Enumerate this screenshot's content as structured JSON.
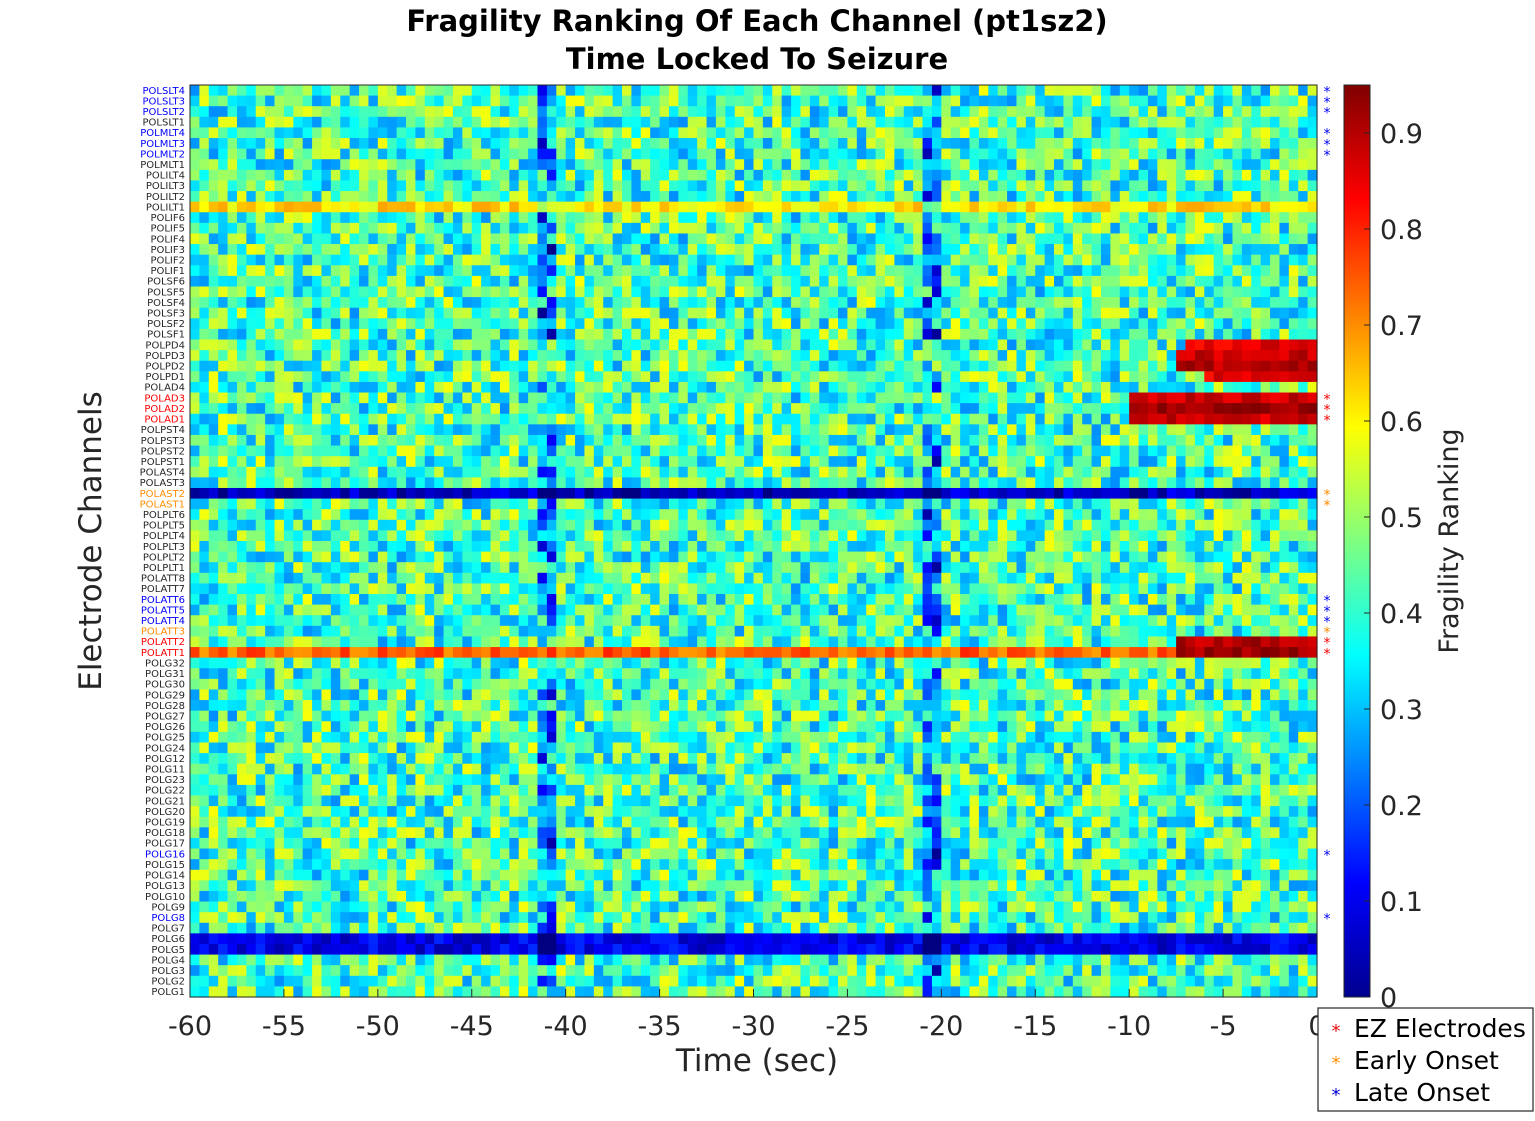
{
  "chart_data": {
    "type": "heatmap",
    "title": "Fragility Ranking Of Each Channel (pt1sz2)",
    "subtitle": "Time Locked To Seizure",
    "xlabel": "Time (sec)",
    "ylabel": "Electrode Channels",
    "colorbar_label": "Fragility Ranking",
    "xlim": [
      -60,
      0
    ],
    "x_ticks": [
      "-60",
      "-55",
      "-50",
      "-45",
      "-40",
      "-35",
      "-30",
      "-25",
      "-20",
      "-15",
      "-10",
      "-5",
      "0"
    ],
    "x_tick_values": [
      -60,
      -55,
      -50,
      -45,
      -40,
      -35,
      -30,
      -25,
      -20,
      -15,
      -10,
      -5,
      0
    ],
    "clim": [
      0,
      0.95
    ],
    "colorbar_ticks": [
      "0",
      "0.1",
      "0.2",
      "0.3",
      "0.4",
      "0.5",
      "0.6",
      "0.7",
      "0.8",
      "0.9"
    ],
    "colorbar_tick_values": [
      0,
      0.1,
      0.2,
      0.3,
      0.4,
      0.5,
      0.6,
      0.7,
      0.8,
      0.9
    ],
    "colormap": "jet",
    "time_bins": 120,
    "channels": [
      {
        "name": "POLSLT4",
        "group": "late"
      },
      {
        "name": "POLSLT3",
        "group": "late"
      },
      {
        "name": "POLSLT2",
        "group": "late"
      },
      {
        "name": "POLSLT1",
        "group": "none"
      },
      {
        "name": "POLMLT4",
        "group": "late"
      },
      {
        "name": "POLMLT3",
        "group": "late"
      },
      {
        "name": "POLMLT2",
        "group": "late"
      },
      {
        "name": "POLMLT1",
        "group": "none"
      },
      {
        "name": "POLILT4",
        "group": "none"
      },
      {
        "name": "POLILT3",
        "group": "none"
      },
      {
        "name": "POLILT2",
        "group": "none"
      },
      {
        "name": "POLILT1",
        "group": "none"
      },
      {
        "name": "POLIF6",
        "group": "none"
      },
      {
        "name": "POLIF5",
        "group": "none"
      },
      {
        "name": "POLIF4",
        "group": "none"
      },
      {
        "name": "POLIF3",
        "group": "none"
      },
      {
        "name": "POLIF2",
        "group": "none"
      },
      {
        "name": "POLIF1",
        "group": "none"
      },
      {
        "name": "POLSF6",
        "group": "none"
      },
      {
        "name": "POLSF5",
        "group": "none"
      },
      {
        "name": "POLSF4",
        "group": "none"
      },
      {
        "name": "POLSF3",
        "group": "none"
      },
      {
        "name": "POLSF2",
        "group": "none"
      },
      {
        "name": "POLSF1",
        "group": "none"
      },
      {
        "name": "POLPD4",
        "group": "none"
      },
      {
        "name": "POLPD3",
        "group": "none"
      },
      {
        "name": "POLPD2",
        "group": "none"
      },
      {
        "name": "POLPD1",
        "group": "none"
      },
      {
        "name": "POLAD4",
        "group": "none"
      },
      {
        "name": "POLAD3",
        "group": "ez"
      },
      {
        "name": "POLAD2",
        "group": "ez"
      },
      {
        "name": "POLAD1",
        "group": "ez"
      },
      {
        "name": "POLPST4",
        "group": "none"
      },
      {
        "name": "POLPST3",
        "group": "none"
      },
      {
        "name": "POLPST2",
        "group": "none"
      },
      {
        "name": "POLPST1",
        "group": "none"
      },
      {
        "name": "POLAST4",
        "group": "none"
      },
      {
        "name": "POLAST3",
        "group": "none"
      },
      {
        "name": "POLAST2",
        "group": "early"
      },
      {
        "name": "POLAST1",
        "group": "early"
      },
      {
        "name": "POLPLT6",
        "group": "none"
      },
      {
        "name": "POLPLT5",
        "group": "none"
      },
      {
        "name": "POLPLT4",
        "group": "none"
      },
      {
        "name": "POLPLT3",
        "group": "none"
      },
      {
        "name": "POLPLT2",
        "group": "none"
      },
      {
        "name": "POLPLT1",
        "group": "none"
      },
      {
        "name": "POLATT8",
        "group": "none"
      },
      {
        "name": "POLATT7",
        "group": "none"
      },
      {
        "name": "POLATT6",
        "group": "late"
      },
      {
        "name": "POLATT5",
        "group": "late"
      },
      {
        "name": "POLATT4",
        "group": "late"
      },
      {
        "name": "POLATT3",
        "group": "early"
      },
      {
        "name": "POLATT2",
        "group": "ez"
      },
      {
        "name": "POLATT1",
        "group": "ez"
      },
      {
        "name": "POLG32",
        "group": "none"
      },
      {
        "name": "POLG31",
        "group": "none"
      },
      {
        "name": "POLG30",
        "group": "none"
      },
      {
        "name": "POLG29",
        "group": "none"
      },
      {
        "name": "POLG28",
        "group": "none"
      },
      {
        "name": "POLG27",
        "group": "none"
      },
      {
        "name": "POLG26",
        "group": "none"
      },
      {
        "name": "POLG25",
        "group": "none"
      },
      {
        "name": "POLG24",
        "group": "none"
      },
      {
        "name": "POLG12",
        "group": "none"
      },
      {
        "name": "POLG11",
        "group": "none"
      },
      {
        "name": "POLG23",
        "group": "none"
      },
      {
        "name": "POLG22",
        "group": "none"
      },
      {
        "name": "POLG21",
        "group": "none"
      },
      {
        "name": "POLG20",
        "group": "none"
      },
      {
        "name": "POLG19",
        "group": "none"
      },
      {
        "name": "POLG18",
        "group": "none"
      },
      {
        "name": "POLG17",
        "group": "none"
      },
      {
        "name": "POLG16",
        "group": "late"
      },
      {
        "name": "POLG15",
        "group": "none"
      },
      {
        "name": "POLG14",
        "group": "none"
      },
      {
        "name": "POLG13",
        "group": "none"
      },
      {
        "name": "POLG10",
        "group": "none"
      },
      {
        "name": "POLG9",
        "group": "none"
      },
      {
        "name": "POLG8",
        "group": "late"
      },
      {
        "name": "POLG7",
        "group": "none"
      },
      {
        "name": "POLG6",
        "group": "none"
      },
      {
        "name": "POLG5",
        "group": "none"
      },
      {
        "name": "POLG4",
        "group": "none"
      },
      {
        "name": "POLG3",
        "group": "none"
      },
      {
        "name": "POLG2",
        "group": "none"
      },
      {
        "name": "POLG1",
        "group": "none"
      }
    ],
    "row_profiles": {
      "POLILT1": {
        "base": 0.62
      },
      "POLPD4": {
        "high_from": -7,
        "high_value": 0.85
      },
      "POLPD3": {
        "high_from": -7.5,
        "high_value": 0.88
      },
      "POLPD2": {
        "high_from": -7.5,
        "high_value": 0.9
      },
      "POLPD1": {
        "high_from": -6,
        "high_value": 0.85
      },
      "POLAD3": {
        "high_from": -10,
        "high_value": 0.88
      },
      "POLAD2": {
        "high_from": -10,
        "high_value": 0.92
      },
      "POLAD1": {
        "high_from": -10,
        "high_value": 0.88
      },
      "POLAST2": {
        "base": 0.06
      },
      "POLATT2": {
        "high_from": -7.5,
        "high_value": 0.9
      },
      "POLATT1": {
        "base": 0.74,
        "high_from": -7.5,
        "high_value": 0.92
      },
      "POLG6": {
        "base": 0.1
      },
      "POLG5": {
        "base": 0.1
      }
    },
    "low_columns": [
      -41,
      -20.5
    ]
  },
  "legend": {
    "items": [
      {
        "label": "EZ Electrodes",
        "color": "#e01010"
      },
      {
        "label": "Early Onset",
        "color": "#ff8c00"
      },
      {
        "label": "Late Onset",
        "color": "#0000cc"
      }
    ]
  },
  "colors": {
    "ez": "#ff0000",
    "early": "#ff8c00",
    "late": "#0000ff",
    "none": "#262626"
  },
  "marker": "*"
}
